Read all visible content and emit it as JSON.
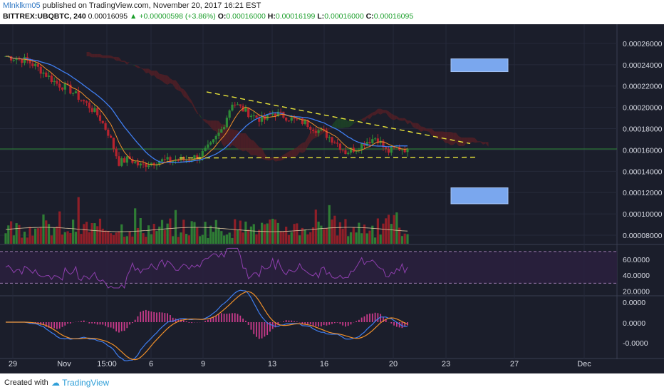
{
  "header": {
    "author": "Mlnklkm05",
    "published": "published on TradingView.com, November 20, 2017 16:21 EST",
    "symbol": "BITTREX:UBQBTC, 240",
    "price": "0.00016095",
    "change_icon": "triangle-up-icon",
    "change": "+0.00000598 (+3.86%)",
    "o_label": "O:",
    "o": "0.00016000",
    "h_label": "H:",
    "h": "0.00016199",
    "l_label": "L:",
    "l": "0.00016000",
    "c_label": "C:",
    "c": "0.00016095"
  },
  "footer": {
    "created_with": "Created with",
    "brand": "TradingView"
  },
  "colors": {
    "background": "#1b1e2b",
    "up": "#2e8b37",
    "down": "#b8232e",
    "ma": "#3f7ef0",
    "conv": "#f0902a",
    "trend": "#e8e43a",
    "rsi": "#8e3fae",
    "box": "#7aa7ee"
  },
  "chart_data": [
    {
      "type": "candlestick",
      "pane": "price",
      "x_tick_labels": [
        "29",
        "Nov",
        "15:00",
        "6",
        "9",
        "13",
        "16",
        "20",
        "23",
        "27",
        "Dec"
      ],
      "y_tick_labels": [
        "0.00026000",
        "0.00024000",
        "0.00022000",
        "0.00020000",
        "0.00018000",
        "0.00016000",
        "0.00014000",
        "0.00012000",
        "0.00010000",
        "0.00008000"
      ],
      "ylim": [
        7.2e-05,
        0.000278
      ],
      "ohlc_close_estimate": [
        0.000248,
        0.000246,
        0.000244,
        0.000238,
        0.00023,
        0.000222,
        0.000218,
        0.00021,
        0.000202,
        0.000192,
        0.000175,
        0.000148,
        0.000152,
        0.000145,
        0.000148,
        0.00015,
        0.00015,
        0.000151,
        0.000152,
        0.000156,
        0.000165,
        0.00018,
        0.000205,
        0.000198,
        0.000192,
        0.000188,
        0.000195,
        0.000192,
        0.000188,
        0.000186,
        0.00018,
        0.000175,
        0.000168,
        0.000158,
        0.000162,
        0.000168,
        0.000172,
        0.000158,
        0.000162,
        0.00016095
      ],
      "annotations": [
        {
          "type": "box",
          "price_top": 0.0002455,
          "price_bottom": 0.0002335
        },
        {
          "type": "box",
          "price_top": 0.0001245,
          "price_bottom": 0.0001095
        }
      ]
    },
    {
      "type": "bar",
      "pane": "volume"
    },
    {
      "type": "line",
      "pane": "rsi",
      "y_tick_labels": [
        "60.0000",
        "40.0000",
        "20.0000"
      ],
      "ylim": [
        15,
        78
      ]
    },
    {
      "type": "line",
      "pane": "macd",
      "y_tick_labels": [
        "0.0000",
        "0.0000",
        "-0.0000"
      ]
    }
  ]
}
